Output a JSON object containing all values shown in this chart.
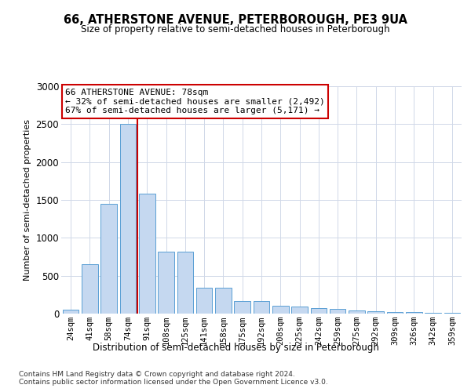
{
  "title1": "66, ATHERSTONE AVENUE, PETERBOROUGH, PE3 9UA",
  "title2": "Size of property relative to semi-detached houses in Peterborough",
  "xlabel": "Distribution of semi-detached houses by size in Peterborough",
  "ylabel": "Number of semi-detached properties",
  "categories": [
    "24sqm",
    "41sqm",
    "58sqm",
    "74sqm",
    "91sqm",
    "108sqm",
    "125sqm",
    "141sqm",
    "158sqm",
    "175sqm",
    "192sqm",
    "208sqm",
    "225sqm",
    "242sqm",
    "259sqm",
    "275sqm",
    "292sqm",
    "309sqm",
    "326sqm",
    "342sqm",
    "359sqm"
  ],
  "values": [
    50,
    650,
    1450,
    2500,
    1580,
    820,
    820,
    340,
    340,
    170,
    170,
    105,
    95,
    70,
    65,
    40,
    30,
    20,
    18,
    15,
    12
  ],
  "bar_color": "#c5d8f0",
  "bar_edge_color": "#5a9fd4",
  "vline_x": 3.5,
  "vline_color": "#cc0000",
  "annotation_text": "66 ATHERSTONE AVENUE: 78sqm\n← 32% of semi-detached houses are smaller (2,492)\n67% of semi-detached houses are larger (5,171) →",
  "annotation_box_color": "#ffffff",
  "annotation_box_edge": "#cc0000",
  "ylim": [
    0,
    3000
  ],
  "yticks": [
    0,
    500,
    1000,
    1500,
    2000,
    2500,
    3000
  ],
  "footer1": "Contains HM Land Registry data © Crown copyright and database right 2024.",
  "footer2": "Contains public sector information licensed under the Open Government Licence v3.0.",
  "bg_color": "#ffffff",
  "grid_color": "#d0d8e8"
}
